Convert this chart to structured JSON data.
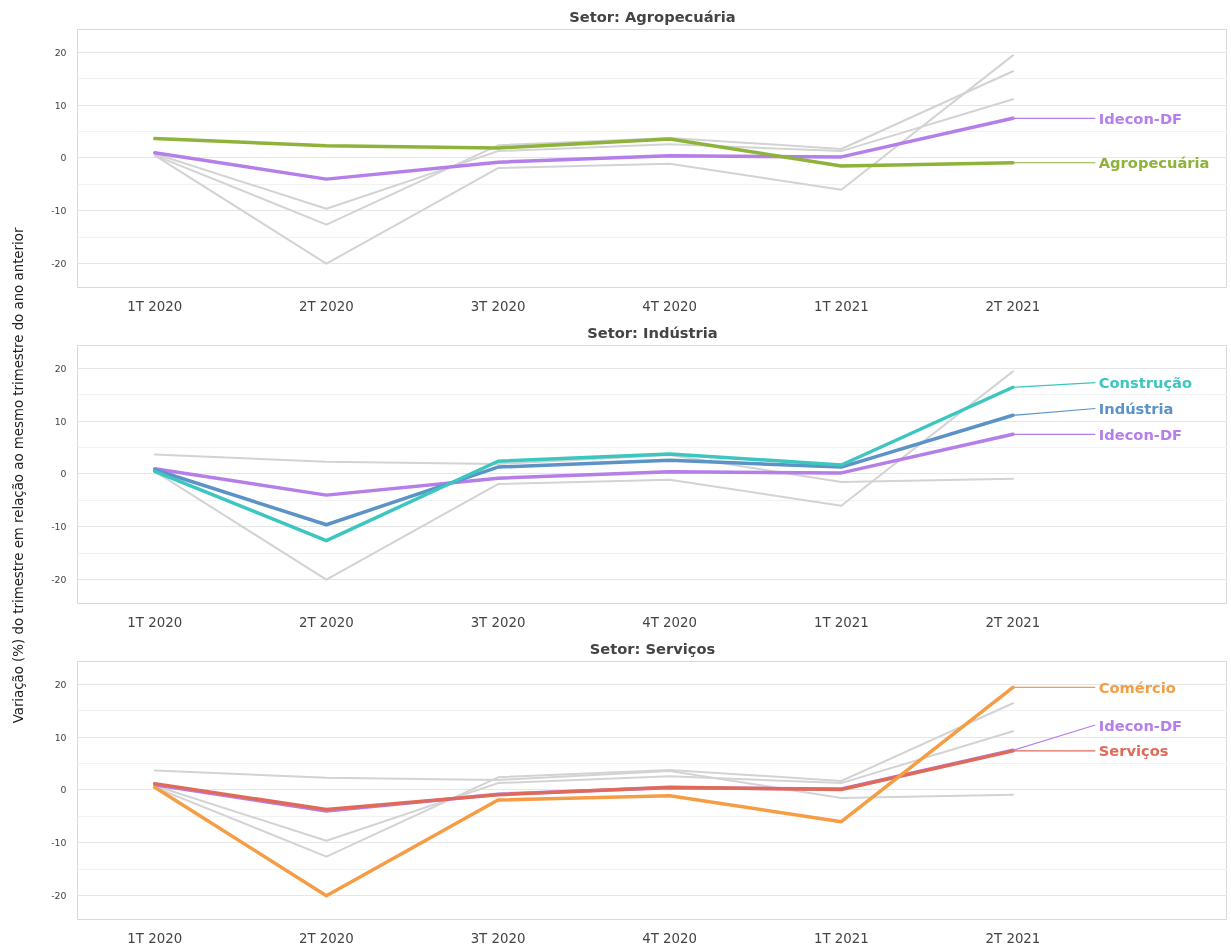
{
  "chart_data": [
    {
      "type": "line",
      "title": "Setor: Agropecuária",
      "categories": [
        "1T 2020",
        "2T 2020",
        "3T 2020",
        "4T 2020",
        "1T 2021",
        "2T 2021"
      ],
      "ylim": [
        -24.5,
        24.3
      ],
      "yticks": [
        -20,
        -10,
        0,
        10,
        20
      ],
      "grid": "y",
      "series": [
        {
          "color": "#d3d3d3",
          "values": [
            0.5,
            -12.6,
            2.4,
            3.8,
            1.7,
            16.4
          ]
        },
        {
          "color": "#d3d3d3",
          "values": [
            0.8,
            -9.6,
            1.3,
            2.6,
            1.3,
            11.1
          ]
        },
        {
          "color": "#d3d3d3",
          "values": [
            0.5,
            -20,
            -1.9,
            -1.1,
            -6.0,
            19.4
          ]
        },
        {
          "name": "Idecon-DF",
          "color": "#b57ee8",
          "values": [
            1.0,
            -4.0,
            -0.8,
            0.4,
            0.2,
            7.5
          ]
        },
        {
          "name": "Agropecuária",
          "color": "#8db33a",
          "values": [
            3.7,
            2.3,
            1.9,
            3.6,
            -1.5,
            -0.9
          ]
        }
      ]
    },
    {
      "type": "line",
      "title": "Setor: Indústria",
      "ylabel": "Variação (%) do trimestre em relação ao mesmo trimestre do ano anterior",
      "categories": [
        "1T 2020",
        "2T 2020",
        "3T 2020",
        "4T 2020",
        "1T 2021",
        "2T 2021"
      ],
      "ylim": [
        -24.5,
        24.3
      ],
      "yticks": [
        -20,
        -10,
        0,
        10,
        20
      ],
      "grid": "y",
      "series": [
        {
          "color": "#d3d3d3",
          "values": [
            3.7,
            2.3,
            1.9,
            3.6,
            -1.5,
            -0.9
          ]
        },
        {
          "color": "#d3d3d3",
          "values": [
            0.5,
            -20,
            -1.9,
            -1.1,
            -6.0,
            19.4
          ]
        },
        {
          "name": "Idecon-DF",
          "color": "#b57ee8",
          "values": [
            1.0,
            -4.0,
            -0.8,
            0.4,
            0.2,
            7.5
          ]
        },
        {
          "name": "Indústria",
          "color": "#5b93c7",
          "values": [
            0.8,
            -9.6,
            1.3,
            2.6,
            1.3,
            11.1
          ]
        },
        {
          "name": "Construção",
          "color": "#3cc6c0",
          "values": [
            0.5,
            -12.6,
            2.4,
            3.8,
            1.7,
            16.4
          ]
        }
      ]
    },
    {
      "type": "line",
      "title": "Setor: Serviços",
      "categories": [
        "1T 2020",
        "2T 2020",
        "3T 2020",
        "4T 2020",
        "1T 2021",
        "2T 2021"
      ],
      "ylim": [
        -24.5,
        24.3
      ],
      "yticks": [
        -20,
        -10,
        0,
        10,
        20
      ],
      "grid": "y",
      "series": [
        {
          "color": "#d3d3d3",
          "values": [
            3.7,
            2.3,
            1.9,
            3.6,
            -1.5,
            -0.9
          ]
        },
        {
          "color": "#d3d3d3",
          "values": [
            0.5,
            -12.6,
            2.4,
            3.8,
            1.7,
            16.4
          ]
        },
        {
          "color": "#d3d3d3",
          "values": [
            0.8,
            -9.6,
            1.3,
            2.6,
            1.3,
            11.1
          ]
        },
        {
          "name": "Idecon-DF",
          "color": "#b57ee8",
          "values": [
            1.0,
            -4.0,
            -0.8,
            0.4,
            0.2,
            7.5
          ]
        },
        {
          "name": "Serviços",
          "color": "#e06a5a",
          "values": [
            1.2,
            -3.7,
            -0.9,
            0.5,
            0.1,
            7.4
          ]
        },
        {
          "name": "Comércio",
          "color": "#f59c45",
          "values": [
            0.5,
            -20,
            -1.9,
            -1.1,
            -6.0,
            19.4
          ]
        }
      ]
    }
  ]
}
